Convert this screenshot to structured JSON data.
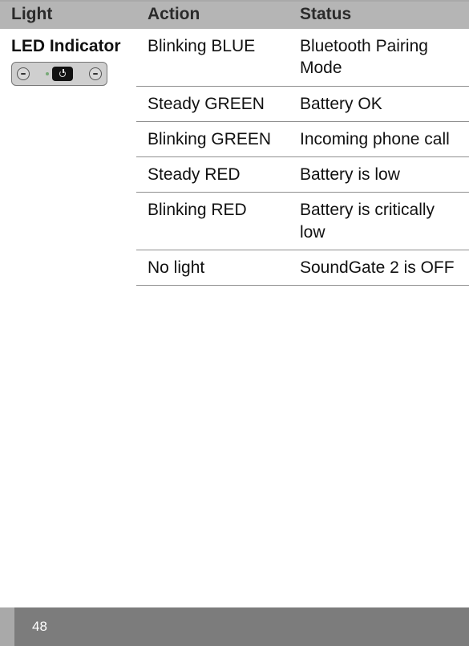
{
  "headers": {
    "light": "Light",
    "action": "Action",
    "status": "Status"
  },
  "rowLabel": "LED Indicator",
  "rows": [
    {
      "action": "Blinking BLUE",
      "status": "Bluetooth Pairing Mode"
    },
    {
      "action": "Steady GREEN",
      "status": "Battery OK"
    },
    {
      "action": "Blinking GREEN",
      "status": "Incoming phone call"
    },
    {
      "action": "Steady RED",
      "status": "Battery is low"
    },
    {
      "action": "Blinking RED",
      "status": "Battery is critically low"
    },
    {
      "action": "No light",
      "status": "SoundGate 2 is OFF"
    }
  ],
  "pageNumber": "48"
}
